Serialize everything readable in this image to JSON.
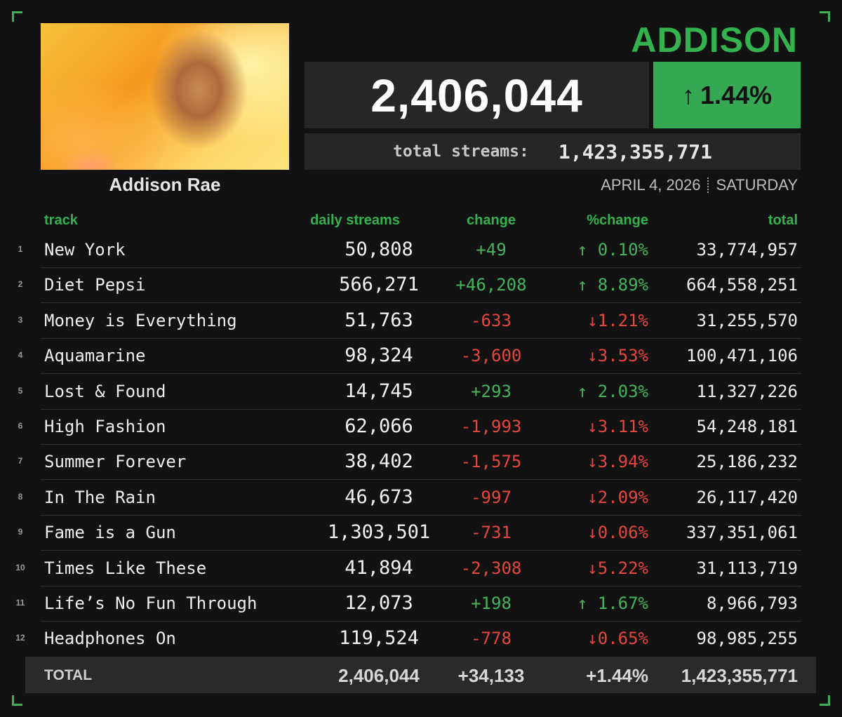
{
  "brand": "ADDISON",
  "artist": {
    "name": "Addison Rae"
  },
  "summary": {
    "daily_streams": "2,406,044",
    "percent_change": "1.44%",
    "total_label": "total streams:",
    "total_value": "1,423,355,771"
  },
  "date": {
    "day": "APRIL 4, 2026",
    "weekday": "SATURDAY"
  },
  "colors": {
    "accent": "#34a853",
    "up": "#44b45c",
    "down": "#e5473d",
    "background": "#121212"
  },
  "table": {
    "headers": {
      "track": "track",
      "daily": "daily streams",
      "change": "change",
      "pct": "%change",
      "total": "total"
    },
    "rows": [
      {
        "rank": "1",
        "title": "New York",
        "daily": "50,808",
        "change": "+49",
        "pct": "↑ 0.10%",
        "total": "33,774,957",
        "dir": "up"
      },
      {
        "rank": "2",
        "title": "Diet Pepsi",
        "daily": "566,271",
        "change": "+46,208",
        "pct": "↑ 8.89%",
        "total": "664,558,251",
        "dir": "up"
      },
      {
        "rank": "3",
        "title": "Money is Everything",
        "daily": "51,763",
        "change": "-633",
        "pct": "↓1.21%",
        "total": "31,255,570",
        "dir": "down"
      },
      {
        "rank": "4",
        "title": "Aquamarine",
        "daily": "98,324",
        "change": "-3,600",
        "pct": "↓3.53%",
        "total": "100,471,106",
        "dir": "down"
      },
      {
        "rank": "5",
        "title": "Lost & Found",
        "daily": "14,745",
        "change": "+293",
        "pct": "↑ 2.03%",
        "total": "11,327,226",
        "dir": "up"
      },
      {
        "rank": "6",
        "title": "High Fashion",
        "daily": "62,066",
        "change": "-1,993",
        "pct": "↓3.11%",
        "total": "54,248,181",
        "dir": "down"
      },
      {
        "rank": "7",
        "title": "Summer Forever",
        "daily": "38,402",
        "change": "-1,575",
        "pct": "↓3.94%",
        "total": "25,186,232",
        "dir": "down"
      },
      {
        "rank": "8",
        "title": "In The Rain",
        "daily": "46,673",
        "change": "-997",
        "pct": "↓2.09%",
        "total": "26,117,420",
        "dir": "down"
      },
      {
        "rank": "9",
        "title": "Fame is a Gun",
        "daily": "1,303,501",
        "change": "-731",
        "pct": "↓0.06%",
        "total": "337,351,061",
        "dir": "down"
      },
      {
        "rank": "10",
        "title": "Times Like These",
        "daily": "41,894",
        "change": "-2,308",
        "pct": "↓5.22%",
        "total": "31,113,719",
        "dir": "down"
      },
      {
        "rank": "11",
        "title": "Life’s No Fun Through",
        "daily": "12,073",
        "change": "+198",
        "pct": "↑ 1.67%",
        "total": "8,966,793",
        "dir": "up"
      },
      {
        "rank": "12",
        "title": "Headphones On",
        "daily": "119,524",
        "change": "-778",
        "pct": "↓0.65%",
        "total": "98,985,255",
        "dir": "down"
      }
    ],
    "totals": {
      "label": "TOTAL",
      "daily": "2,406,044",
      "change": "+34,133",
      "pct": "+1.44%",
      "total": "1,423,355,771"
    }
  }
}
